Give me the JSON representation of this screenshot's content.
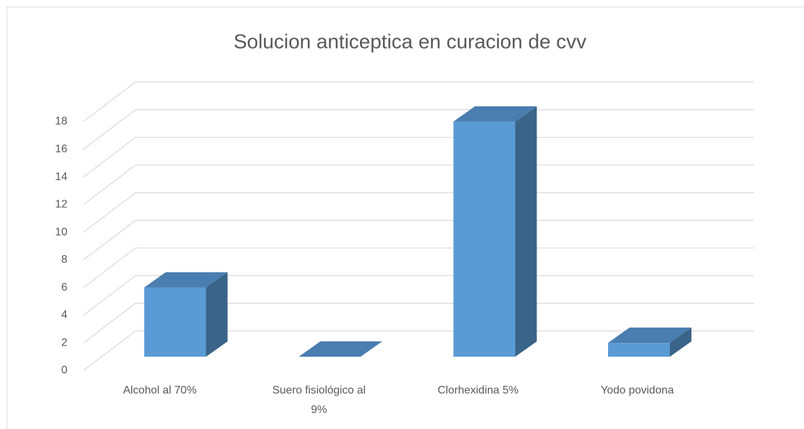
{
  "chart_data": {
    "type": "bar3d",
    "title": "Solucion anticeptica en curacion de cvv",
    "categories": [
      "Alcohol al 70%",
      "Suero fisiológico al 9%",
      "Clorhexidina 5%",
      "Yodo povidona"
    ],
    "values": [
      5,
      0,
      17,
      1
    ],
    "color": "#5b9bd5",
    "ylim": [
      0,
      18
    ],
    "yticks": [
      0,
      2,
      4,
      6,
      8,
      10,
      12,
      14,
      16,
      18
    ],
    "grid": true
  }
}
